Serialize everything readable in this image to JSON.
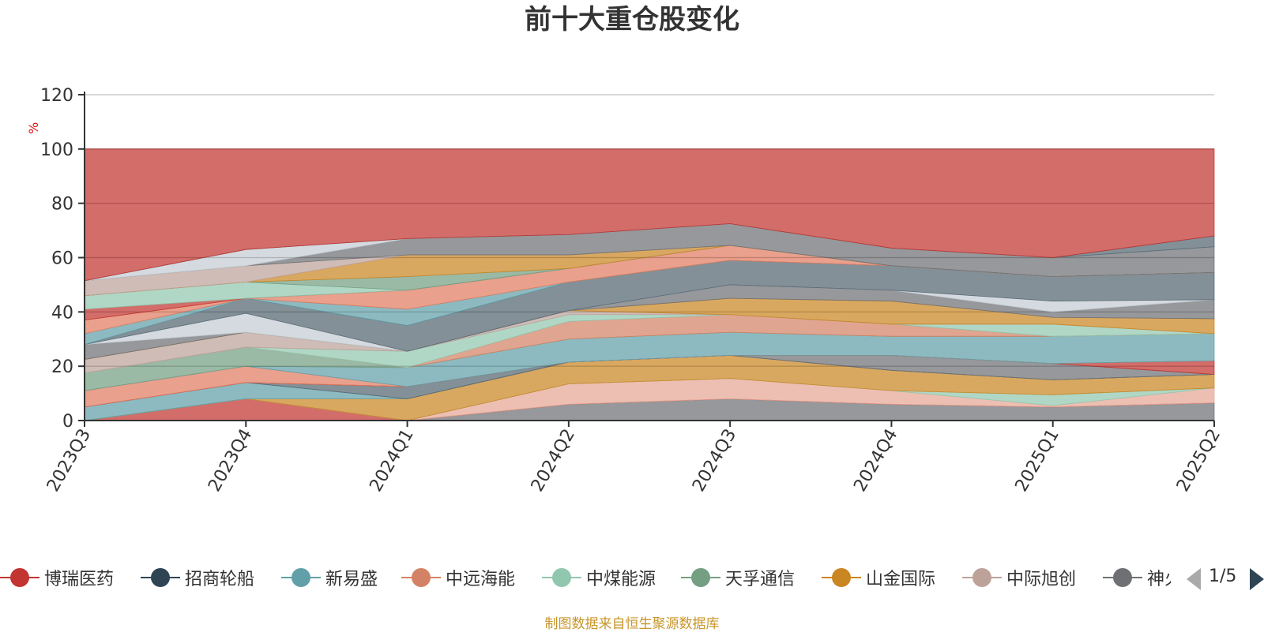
{
  "chart_data": {
    "type": "area",
    "title": "前十大重仓股变化",
    "ylabel": "%",
    "ylim": [
      0,
      120
    ],
    "yticks": [
      0,
      20,
      40,
      60,
      80,
      100,
      120
    ],
    "categories": [
      "2023Q3",
      "2023Q4",
      "2024Q1",
      "2024Q2",
      "2024Q3",
      "2024Q4",
      "2025Q1",
      "2025Q2"
    ],
    "legend_position": "bottom",
    "grid": true,
    "stack_top": 100,
    "bands": [
      {
        "color": "#6e7074",
        "top": [
          0,
          0,
          0,
          6,
          8,
          6,
          5,
          6.5
        ]
      },
      {
        "color": "#c23531",
        "top": [
          0,
          8,
          0,
          6,
          8,
          6,
          5,
          6.5
        ]
      },
      {
        "color": "#e6a695",
        "top": [
          0,
          8,
          0,
          13.5,
          15.5,
          11,
          5.5,
          12
        ]
      },
      {
        "color": "#91c7ae",
        "top": [
          0,
          8,
          0,
          13.5,
          15.5,
          11,
          9.5,
          12
        ]
      },
      {
        "color": "#ca8622",
        "top": [
          0,
          8,
          8,
          21.5,
          24,
          18.5,
          15,
          17
        ]
      },
      {
        "color": "#61a0a8",
        "top": [
          5,
          14,
          8,
          21.5,
          24,
          18.5,
          15,
          17
        ]
      },
      {
        "color": "#546570",
        "top": [
          5,
          14,
          12.5,
          21.5,
          24,
          18.5,
          15,
          17
        ]
      },
      {
        "color": "#6e7074",
        "top": [
          5,
          14,
          12.5,
          21.5,
          24,
          24,
          21,
          17
        ]
      },
      {
        "color": "#c23531",
        "top": [
          5,
          14,
          12.5,
          21.5,
          24,
          24,
          21,
          22
        ]
      },
      {
        "color": "#e07b5f",
        "top": [
          11,
          20,
          12.5,
          21.5,
          24,
          24,
          21,
          22
        ]
      },
      {
        "color": "#61a0a8",
        "top": [
          11,
          20,
          19.5,
          30,
          32.5,
          31,
          31,
          32
        ]
      },
      {
        "color": "#749f83",
        "top": [
          17.5,
          27,
          19.5,
          30,
          32.5,
          31,
          31,
          32
        ]
      },
      {
        "color": "#d48265",
        "top": [
          17.5,
          27,
          19.5,
          36.5,
          39,
          35.5,
          31,
          32
        ]
      },
      {
        "color": "#91c7ae",
        "top": [
          17.5,
          27,
          25.5,
          39,
          39,
          35.5,
          35.5,
          32
        ]
      },
      {
        "color": "#bda29a",
        "top": [
          22.5,
          32.5,
          25.5,
          40.5,
          39,
          35.5,
          35.5,
          32
        ]
      },
      {
        "color": "#ca8622",
        "top": [
          22.5,
          32.5,
          25.5,
          40.5,
          45,
          44,
          38,
          37.5
        ]
      },
      {
        "color": "#6e7074",
        "top": [
          28,
          32.5,
          25.5,
          40.5,
          50,
          48,
          40,
          44.5
        ]
      },
      {
        "color": "#c4ccd3",
        "top": [
          28,
          39.5,
          25.5,
          40.5,
          50,
          48,
          44,
          44.5
        ]
      },
      {
        "color": "#546570",
        "top": [
          28,
          45,
          35,
          51,
          59,
          57,
          53,
          54.5
        ]
      },
      {
        "color": "#61a0a8",
        "top": [
          32,
          45,
          41,
          51,
          59,
          57,
          53,
          54.5
        ]
      },
      {
        "color": "#e07b5f",
        "top": [
          37,
          45,
          48,
          56,
          64.5,
          57,
          53,
          54.5
        ]
      },
      {
        "color": "#c23531",
        "top": [
          41,
          45,
          48,
          56,
          64.5,
          57,
          53,
          54.5
        ]
      },
      {
        "color": "#91c7ae",
        "top": [
          46,
          51,
          48,
          56,
          64.5,
          57,
          53,
          54.5
        ]
      },
      {
        "color": "#749f83",
        "top": [
          46,
          51,
          53,
          56,
          64.5,
          57,
          53,
          54.5
        ]
      },
      {
        "color": "#ca8622",
        "top": [
          46,
          51,
          61,
          61,
          64.5,
          57,
          53,
          54.5
        ]
      },
      {
        "color": "#bda29a",
        "top": [
          51.5,
          57,
          61,
          61,
          64.5,
          57,
          53,
          54.5
        ]
      },
      {
        "color": "#6e7074",
        "top": [
          51.5,
          57,
          67,
          68.5,
          72.5,
          63.5,
          60,
          64
        ]
      },
      {
        "color": "#c4ccd3",
        "top": [
          51.5,
          63,
          67,
          68.5,
          72.5,
          63.5,
          60,
          64
        ]
      },
      {
        "color": "#546570",
        "top": [
          51.5,
          63,
          67,
          68.5,
          72.5,
          63.5,
          60,
          68
        ]
      },
      {
        "color": "#c23531",
        "top": [
          100,
          100,
          100,
          100,
          100,
          100,
          100,
          100
        ]
      }
    ],
    "legend": [
      {
        "name": "博瑞医药",
        "color": "#c23531"
      },
      {
        "name": "招商轮船",
        "color": "#2f4554"
      },
      {
        "name": "新易盛",
        "color": "#61a0a8"
      },
      {
        "name": "中远海能",
        "color": "#d48265"
      },
      {
        "name": "中煤能源",
        "color": "#91c7ae"
      },
      {
        "name": "天孚通信",
        "color": "#749f83"
      },
      {
        "name": "山金国际",
        "color": "#ca8622"
      },
      {
        "name": "中际旭创",
        "color": "#bda29a"
      },
      {
        "name": "神火股份",
        "color": "#6e7074"
      }
    ]
  },
  "legend_pager": {
    "text": "1/5"
  },
  "source_note": "制图数据来自恒生聚源数据库"
}
